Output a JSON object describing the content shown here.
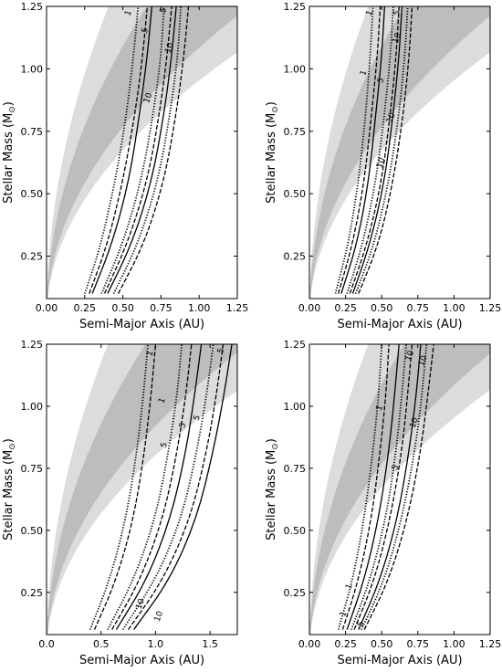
{
  "chart_data": [
    {
      "type": "line",
      "xlabel": "Semi-Major Axis (AU)",
      "ylabel_main": "Stellar Mass (M",
      "ylabel_sub": "⊙",
      "ylabel_end": ")",
      "xlim": [
        0.0,
        1.25
      ],
      "ylim": [
        0.08,
        1.25
      ],
      "xticks": [
        "0.00",
        "0.25",
        "0.50",
        "0.75",
        "1.00",
        "1.25"
      ],
      "yticks": [
        "0.25",
        "0.50",
        "0.75",
        "1.00",
        "1.25"
      ],
      "band_outer": {
        "x_at_top_low": 0.35,
        "x_at_top_high": 1.25,
        "k_low": 0.26,
        "k_high": 1.1
      },
      "band_inner": {
        "k_low": 0.42,
        "k_high": 0.85
      },
      "contour_labels": [
        "1",
        "5",
        "10"
      ],
      "series": [
        {
          "style": "dotted",
          "x": [
            0.25,
            0.35,
            0.45,
            0.52,
            0.57,
            0.6
          ],
          "y": [
            0.1,
            0.28,
            0.55,
            0.8,
            1.05,
            1.25
          ]
        },
        {
          "style": "dashed",
          "x": [
            0.28,
            0.4,
            0.5,
            0.58,
            0.63,
            0.66
          ],
          "y": [
            0.1,
            0.3,
            0.55,
            0.82,
            1.05,
            1.25
          ]
        },
        {
          "style": "solid",
          "x": [
            0.3,
            0.43,
            0.54,
            0.61,
            0.66,
            0.69
          ],
          "y": [
            0.1,
            0.3,
            0.55,
            0.82,
            1.05,
            1.25
          ]
        },
        {
          "style": "dotted",
          "x": [
            0.36,
            0.5,
            0.62,
            0.7,
            0.75,
            0.77
          ],
          "y": [
            0.1,
            0.3,
            0.55,
            0.82,
            1.05,
            1.25
          ]
        },
        {
          "style": "dashed",
          "x": [
            0.38,
            0.53,
            0.66,
            0.74,
            0.79,
            0.82
          ],
          "y": [
            0.1,
            0.3,
            0.55,
            0.82,
            1.05,
            1.25
          ]
        },
        {
          "style": "solid",
          "x": [
            0.4,
            0.56,
            0.69,
            0.77,
            0.82,
            0.85
          ],
          "y": [
            0.1,
            0.3,
            0.55,
            0.82,
            1.05,
            1.25
          ]
        },
        {
          "style": "dotted",
          "x": [
            0.44,
            0.6,
            0.73,
            0.81,
            0.86,
            0.88
          ],
          "y": [
            0.1,
            0.3,
            0.55,
            0.82,
            1.05,
            1.25
          ]
        },
        {
          "style": "dashed",
          "x": [
            0.47,
            0.64,
            0.77,
            0.85,
            0.9,
            0.93
          ],
          "y": [
            0.1,
            0.3,
            0.55,
            0.82,
            1.05,
            1.25
          ]
        }
      ],
      "labels": [
        {
          "text": "1",
          "x": 0.55,
          "y": 1.22
        },
        {
          "text": "5",
          "x": 0.66,
          "y": 1.15
        },
        {
          "text": "10",
          "x": 0.68,
          "y": 0.88
        },
        {
          "text": "10",
          "x": 0.82,
          "y": 1.08
        },
        {
          "text": "5",
          "x": 0.78,
          "y": 1.23
        }
      ]
    },
    {
      "type": "line",
      "xlabel": "Semi-Major Axis (AU)",
      "ylabel_main": "Stellar Mass (M",
      "ylabel_sub": "⊙",
      "ylabel_end": ")",
      "xlim": [
        0.0,
        1.25
      ],
      "ylim": [
        0.08,
        1.25
      ],
      "xticks": [
        "0.00",
        "0.25",
        "0.50",
        "0.75",
        "1.00",
        "1.25"
      ],
      "yticks": [
        "0.25",
        "0.50",
        "0.75",
        "1.00",
        "1.25"
      ],
      "band_outer": {
        "k_low": 0.26,
        "k_high": 1.1
      },
      "band_inner": {
        "k_low": 0.42,
        "k_high": 0.85
      },
      "contour_labels": [
        "1",
        "5",
        "10"
      ],
      "series": [
        {
          "style": "dotted",
          "x": [
            0.18,
            0.27,
            0.34,
            0.39,
            0.42,
            0.44
          ],
          "y": [
            0.1,
            0.3,
            0.55,
            0.82,
            1.05,
            1.25
          ]
        },
        {
          "style": "dashed",
          "x": [
            0.2,
            0.3,
            0.38,
            0.43,
            0.47,
            0.49
          ],
          "y": [
            0.1,
            0.3,
            0.55,
            0.82,
            1.05,
            1.25
          ]
        },
        {
          "style": "solid",
          "x": [
            0.22,
            0.33,
            0.41,
            0.46,
            0.5,
            0.52
          ],
          "y": [
            0.1,
            0.3,
            0.55,
            0.82,
            1.05,
            1.25
          ]
        },
        {
          "style": "dotted",
          "x": [
            0.26,
            0.37,
            0.46,
            0.52,
            0.56,
            0.58
          ],
          "y": [
            0.1,
            0.3,
            0.55,
            0.82,
            1.05,
            1.25
          ]
        },
        {
          "style": "dashed",
          "x": [
            0.28,
            0.4,
            0.5,
            0.56,
            0.6,
            0.62
          ],
          "y": [
            0.1,
            0.3,
            0.55,
            0.82,
            1.05,
            1.25
          ]
        },
        {
          "style": "solid",
          "x": [
            0.3,
            0.42,
            0.52,
            0.58,
            0.62,
            0.64
          ],
          "y": [
            0.1,
            0.3,
            0.55,
            0.82,
            1.05,
            1.25
          ]
        },
        {
          "style": "dotted",
          "x": [
            0.32,
            0.45,
            0.55,
            0.62,
            0.66,
            0.68
          ],
          "y": [
            0.1,
            0.3,
            0.55,
            0.82,
            1.05,
            1.25
          ]
        },
        {
          "style": "dashed",
          "x": [
            0.34,
            0.48,
            0.58,
            0.65,
            0.69,
            0.71
          ],
          "y": [
            0.1,
            0.3,
            0.55,
            0.82,
            1.05,
            1.25
          ]
        }
      ],
      "labels": [
        {
          "text": "1",
          "x": 0.43,
          "y": 1.22
        },
        {
          "text": "1",
          "x": 0.39,
          "y": 0.98
        },
        {
          "text": "5",
          "x": 0.51,
          "y": 0.95
        },
        {
          "text": "5",
          "x": 0.62,
          "y": 1.22
        },
        {
          "text": "10",
          "x": 0.62,
          "y": 1.12
        },
        {
          "text": "10",
          "x": 0.58,
          "y": 0.8
        },
        {
          "text": "10",
          "x": 0.51,
          "y": 0.62
        }
      ]
    },
    {
      "type": "line",
      "xlabel": "Semi-Major Axis (AU)",
      "ylabel_main": "Stellar Mass (M",
      "ylabel_sub": "⊙",
      "ylabel_end": ")",
      "xlim": [
        0.0,
        1.75
      ],
      "ylim": [
        0.08,
        1.25
      ],
      "xticks": [
        "0.0",
        "0.5",
        "1.0",
        "1.5"
      ],
      "xtick_values": [
        0.0,
        0.5,
        1.0,
        1.5
      ],
      "yticks": [
        "0.25",
        "0.50",
        "0.75",
        "1.00",
        "1.25"
      ],
      "band_outer": {
        "k_low": 0.36,
        "k_high": 1.55
      },
      "band_inner": {
        "k_low": 0.58,
        "k_high": 1.18
      },
      "contour_labels": [
        "1",
        "5",
        "10"
      ],
      "series": [
        {
          "style": "dotted",
          "x": [
            0.4,
            0.58,
            0.73,
            0.83,
            0.89,
            0.93
          ],
          "y": [
            0.1,
            0.3,
            0.55,
            0.82,
            1.05,
            1.25
          ]
        },
        {
          "style": "dashed",
          "x": [
            0.44,
            0.64,
            0.8,
            0.9,
            0.96,
            1.0
          ],
          "y": [
            0.1,
            0.3,
            0.55,
            0.82,
            1.05,
            1.25
          ]
        },
        {
          "style": "dotted",
          "x": [
            0.56,
            0.8,
            1.0,
            1.12,
            1.2,
            1.24
          ],
          "y": [
            0.1,
            0.3,
            0.55,
            0.82,
            1.05,
            1.25
          ]
        },
        {
          "style": "dashed",
          "x": [
            0.6,
            0.86,
            1.07,
            1.2,
            1.28,
            1.33
          ],
          "y": [
            0.1,
            0.3,
            0.55,
            0.82,
            1.05,
            1.25
          ]
        },
        {
          "style": "solid",
          "x": [
            0.64,
            0.92,
            1.14,
            1.28,
            1.36,
            1.42
          ],
          "y": [
            0.1,
            0.3,
            0.55,
            0.82,
            1.05,
            1.25
          ]
        },
        {
          "style": "dotted",
          "x": [
            0.7,
            1.0,
            1.24,
            1.38,
            1.47,
            1.53
          ],
          "y": [
            0.1,
            0.3,
            0.55,
            0.82,
            1.05,
            1.25
          ]
        },
        {
          "style": "dashed",
          "x": [
            0.75,
            1.07,
            1.32,
            1.47,
            1.56,
            1.62
          ],
          "y": [
            0.1,
            0.3,
            0.55,
            0.82,
            1.05,
            1.25
          ]
        },
        {
          "style": "solid",
          "x": [
            0.8,
            1.13,
            1.38,
            1.53,
            1.63,
            1.7
          ],
          "y": [
            0.1,
            0.3,
            0.55,
            0.82,
            1.05,
            1.25
          ]
        }
      ],
      "labels": [
        {
          "text": "1",
          "x": 0.97,
          "y": 1.21
        },
        {
          "text": "1",
          "x": 1.08,
          "y": 1.02
        },
        {
          "text": "5",
          "x": 1.27,
          "y": 0.92
        },
        {
          "text": "5",
          "x": 1.1,
          "y": 0.84
        },
        {
          "text": "5",
          "x": 1.4,
          "y": 0.95
        },
        {
          "text": "5",
          "x": 1.62,
          "y": 1.22
        },
        {
          "text": "10",
          "x": 0.88,
          "y": 0.2
        },
        {
          "text": "10",
          "x": 1.05,
          "y": 0.15
        }
      ]
    },
    {
      "type": "line",
      "xlabel": "Semi-Major Axis (AU)",
      "ylabel_main": "Stellar Mass (M",
      "ylabel_sub": "⊙",
      "ylabel_end": ")",
      "xlim": [
        0.0,
        1.25
      ],
      "ylim": [
        0.08,
        1.25
      ],
      "xticks": [
        "0.00",
        "0.25",
        "0.50",
        "0.75",
        "1.00",
        "1.25"
      ],
      "yticks": [
        "0.25",
        "0.50",
        "0.75",
        "1.00",
        "1.25"
      ],
      "band_outer": {
        "k_low": 0.26,
        "k_high": 1.1
      },
      "band_inner": {
        "k_low": 0.42,
        "k_high": 0.85
      },
      "contour_labels": [
        "1",
        "5",
        "10"
      ],
      "series": [
        {
          "style": "dotted",
          "x": [
            0.2,
            0.3,
            0.38,
            0.44,
            0.48,
            0.5
          ],
          "y": [
            0.1,
            0.3,
            0.55,
            0.82,
            1.05,
            1.25
          ]
        },
        {
          "style": "dashed",
          "x": [
            0.23,
            0.34,
            0.43,
            0.49,
            0.53,
            0.55
          ],
          "y": [
            0.1,
            0.3,
            0.55,
            0.82,
            1.05,
            1.25
          ]
        },
        {
          "style": "solid",
          "x": [
            0.26,
            0.38,
            0.48,
            0.55,
            0.59,
            0.62
          ],
          "y": [
            0.1,
            0.3,
            0.55,
            0.82,
            1.05,
            1.25
          ]
        },
        {
          "style": "dotted",
          "x": [
            0.29,
            0.42,
            0.53,
            0.6,
            0.64,
            0.67
          ],
          "y": [
            0.1,
            0.3,
            0.55,
            0.82,
            1.05,
            1.25
          ]
        },
        {
          "style": "dashed",
          "x": [
            0.31,
            0.45,
            0.56,
            0.64,
            0.68,
            0.71
          ],
          "y": [
            0.1,
            0.3,
            0.55,
            0.82,
            1.05,
            1.25
          ]
        },
        {
          "style": "solid",
          "x": [
            0.34,
            0.49,
            0.61,
            0.69,
            0.74,
            0.77
          ],
          "y": [
            0.1,
            0.3,
            0.55,
            0.82,
            1.05,
            1.25
          ]
        },
        {
          "style": "dotted",
          "x": [
            0.36,
            0.52,
            0.64,
            0.73,
            0.78,
            0.81
          ],
          "y": [
            0.1,
            0.3,
            0.55,
            0.82,
            1.05,
            1.25
          ]
        },
        {
          "style": "dashed",
          "x": [
            0.38,
            0.55,
            0.68,
            0.77,
            0.82,
            0.86
          ],
          "y": [
            0.1,
            0.3,
            0.55,
            0.82,
            1.05,
            1.25
          ]
        }
      ],
      "labels": [
        {
          "text": "1",
          "x": 0.5,
          "y": 0.99
        },
        {
          "text": "1",
          "x": 0.29,
          "y": 0.27
        },
        {
          "text": "1",
          "x": 0.25,
          "y": 0.16
        },
        {
          "text": "5",
          "x": 0.61,
          "y": 0.75
        },
        {
          "text": "5",
          "x": 0.37,
          "y": 0.12
        },
        {
          "text": "10",
          "x": 0.74,
          "y": 0.93
        },
        {
          "text": "10",
          "x": 0.71,
          "y": 1.2
        },
        {
          "text": "10",
          "x": 0.8,
          "y": 1.18
        }
      ]
    }
  ]
}
